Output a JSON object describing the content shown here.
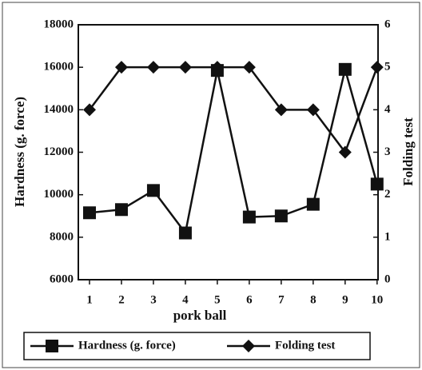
{
  "chart_data": {
    "type": "line",
    "x": [
      1,
      2,
      3,
      4,
      5,
      6,
      7,
      8,
      9,
      10
    ],
    "xlabel": "pork ball",
    "ylabel": "Hardness (g. force)",
    "y2label": "Folding test",
    "xlim": [
      0.65,
      10.03
    ],
    "xticks": [
      1,
      2,
      3,
      4,
      5,
      6,
      7,
      8,
      9,
      10
    ],
    "ylim": [
      6000,
      18000
    ],
    "yticks": [
      6000,
      8000,
      10000,
      12000,
      14000,
      16000,
      18000
    ],
    "y2lim": [
      0,
      6
    ],
    "y2ticks": [
      0,
      1,
      2,
      3,
      4,
      5,
      6
    ],
    "series": [
      {
        "name": "Hardness (g. force)",
        "color": "#111111",
        "marker": "square",
        "values": [
          9150,
          9300,
          10200,
          8200,
          15850,
          8950,
          9000,
          9550,
          15900,
          10500
        ]
      },
      {
        "name": "Folding test",
        "color": "#111111",
        "marker": "diamond",
        "axis": "y2",
        "values": [
          4,
          5,
          5,
          5,
          5,
          5,
          4,
          4,
          3,
          5
        ]
      }
    ]
  }
}
